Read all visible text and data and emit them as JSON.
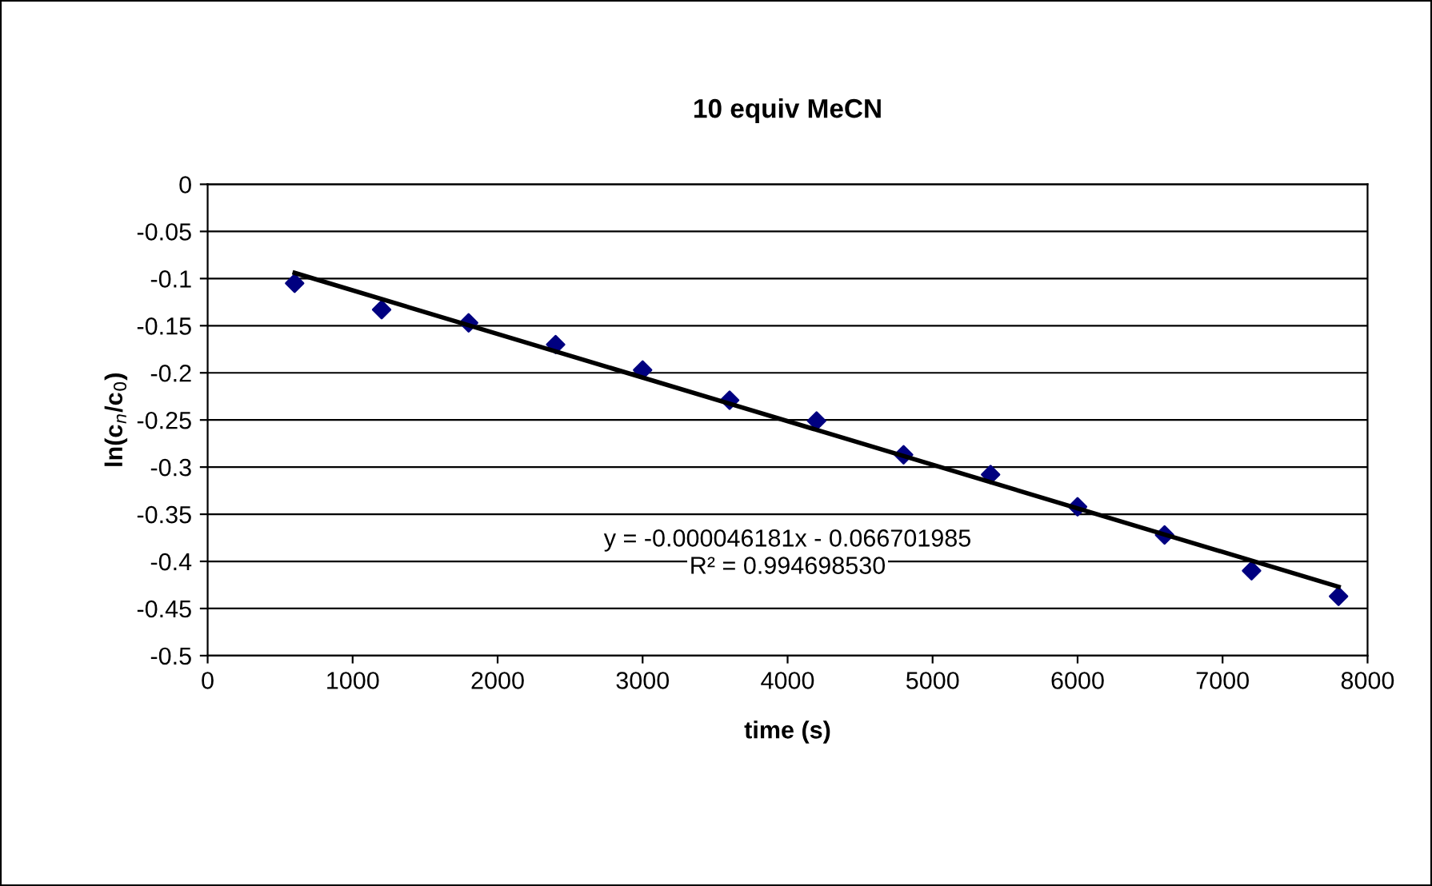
{
  "chart_data": {
    "type": "scatter",
    "title": "10 equiv MeCN",
    "xlabel": "time (s)",
    "ylabel": "ln(c$_{n}$/c$_{0}$)",
    "x": [
      600,
      1200,
      1800,
      2400,
      3000,
      3600,
      4200,
      4800,
      5400,
      6000,
      6600,
      7200,
      7800
    ],
    "series": [
      {
        "color": "#000080",
        "marker": "diamond",
        "values": [
          -0.105,
          -0.133,
          -0.147,
          -0.17,
          -0.197,
          -0.229,
          -0.251,
          -0.287,
          -0.308,
          -0.342,
          -0.372,
          -0.41,
          -0.437
        ]
      },
      {
        "type": "line",
        "color": "#000000",
        "x": [
          600,
          7800
        ],
        "marker": "none",
        "line_style": "solid",
        "values": [
          -0.094,
          -0.427
        ]
      }
    ],
    "annotations": [
      "y = -0.000046181x - 0.066701985",
      "R² = 0.994698530"
    ],
    "xlim": [
      0,
      8000
    ],
    "xticks": [
      0,
      1000,
      2000,
      3000,
      4000,
      5000,
      6000,
      7000,
      8000
    ],
    "ylim": [
      -0.5,
      0
    ],
    "yticks": [
      0,
      -0.05,
      -0.1,
      -0.15,
      -0.2,
      -0.25,
      -0.3,
      -0.35,
      -0.4,
      -0.45,
      -0.5
    ],
    "grid": "y",
    "legend": false
  }
}
